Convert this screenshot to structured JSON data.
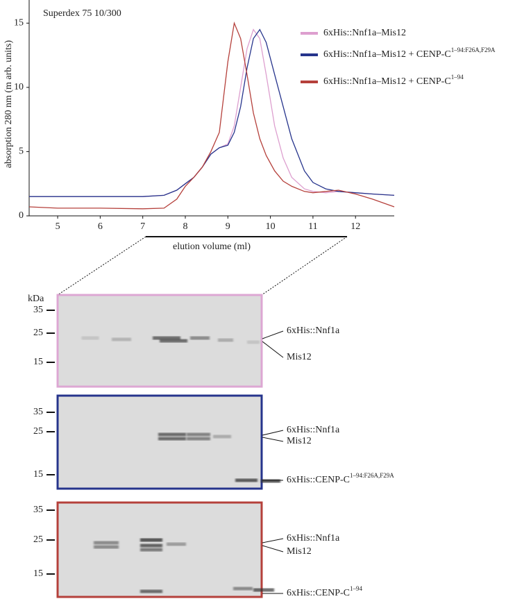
{
  "chart_data": {
    "type": "line",
    "annotation": "Superdex 75 10/300",
    "ylabel": "absorption 280 nm (m arb. units)",
    "xlabel": "elution volume  (ml)",
    "x": [
      4.33,
      5,
      6,
      7,
      7.5,
      7.8,
      8,
      8.2,
      8.4,
      8.6,
      8.8,
      9,
      9.15,
      9.3,
      9.45,
      9.6,
      9.75,
      9.9,
      10.1,
      10.3,
      10.5,
      10.8,
      11,
      11.3,
      11.6,
      12,
      12.4,
      12.91
    ],
    "xlim": [
      4.33,
      12.91
    ],
    "ylim": [
      0,
      16.8
    ],
    "xticks": [
      5,
      6,
      7,
      8,
      9,
      10,
      11,
      12
    ],
    "yticks": [
      0,
      5,
      10,
      15
    ],
    "series": [
      {
        "name": "6xHis::Nnf1a–Mis12",
        "color": "#dd9fcf",
        "values": [
          1.5,
          1.5,
          1.5,
          1.5,
          1.6,
          2.0,
          2.5,
          3.0,
          3.8,
          4.8,
          5.3,
          5.6,
          7,
          10,
          13,
          14.5,
          13.8,
          11,
          7,
          4.5,
          3,
          2.1,
          1.9,
          1.8,
          1.9,
          1.8,
          1.7,
          1.6
        ]
      },
      {
        "name": "6xHis::Nnf1a–Mis12 + CENP-C",
        "name_superscript": "1–94:F26A,F29A",
        "color": "#26348c",
        "values": [
          1.5,
          1.5,
          1.5,
          1.5,
          1.6,
          2.0,
          2.5,
          3.0,
          3.8,
          4.8,
          5.3,
          5.5,
          6.5,
          8.5,
          11.5,
          13.8,
          14.5,
          13.5,
          11,
          8.5,
          6,
          3.5,
          2.6,
          2.1,
          1.9,
          1.8,
          1.7,
          1.6
        ]
      },
      {
        "name": "6xHis::Nnf1a–Mis12 + CENP-C",
        "name_superscript": "1–94",
        "color": "#b5403b",
        "values": [
          0.7,
          0.6,
          0.6,
          0.55,
          0.6,
          1.3,
          2.3,
          3.0,
          3.8,
          5.0,
          6.5,
          12,
          15,
          13.8,
          11,
          8,
          6,
          4.7,
          3.5,
          2.7,
          2.3,
          1.9,
          1.8,
          1.9,
          2.0,
          1.7,
          1.3,
          0.7
        ]
      }
    ]
  },
  "kda_label": "kDa",
  "gels": [
    {
      "border_color": "#dda7d3",
      "markers": [
        "35",
        "25",
        "15"
      ],
      "labels": [
        {
          "text": "6xHis::Nnf1a"
        },
        {
          "text": "Mis12"
        }
      ]
    },
    {
      "border_color": "#26348c",
      "markers": [
        "35",
        "25",
        "15"
      ],
      "labels": [
        {
          "text": "6xHis::Nnf1a"
        },
        {
          "text": "Mis12"
        },
        {
          "text": "6xHis::CENP-C",
          "superscript": "1–94:F26A,F29A"
        }
      ]
    },
    {
      "border_color": "#b5403b",
      "markers": [
        "35",
        "25",
        "15"
      ],
      "labels": [
        {
          "text": "6xHis::Nnf1a"
        },
        {
          "text": "Mis12"
        },
        {
          "text": "6xHis::CENP-C",
          "superscript": "1–94"
        }
      ]
    }
  ]
}
